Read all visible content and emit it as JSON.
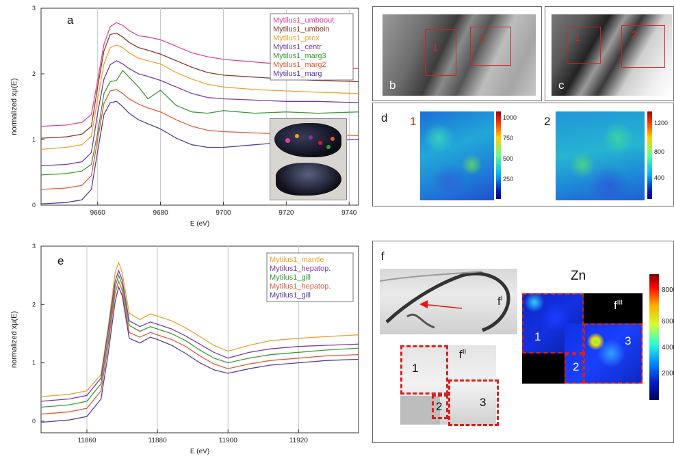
{
  "chart_data": [
    {
      "type": "line",
      "panel": "a",
      "xlabel": "E (eV)",
      "ylabel": "normalized xμ(E)",
      "xlim": [
        9642,
        9743
      ],
      "ylim": [
        0,
        3
      ],
      "xticks": [
        9660,
        9680,
        9700,
        9720,
        9740
      ],
      "yticks": [
        0,
        1,
        2,
        3
      ],
      "grid": "vertical",
      "legend_position": "top-right",
      "x": [
        9642,
        9650,
        9655,
        9658,
        9660,
        9662,
        9664,
        9666,
        9668,
        9670,
        9673,
        9676,
        9680,
        9685,
        9690,
        9695,
        9700,
        9710,
        9720,
        9730,
        9743
      ],
      "series": [
        {
          "name": "Mytilus1_umboout",
          "color": "#e0449c",
          "values": [
            1.2,
            1.22,
            1.26,
            1.38,
            1.9,
            2.45,
            2.72,
            2.78,
            2.74,
            2.66,
            2.58,
            2.56,
            2.52,
            2.42,
            2.32,
            2.26,
            2.22,
            2.18,
            2.14,
            2.1,
            2.08
          ]
        },
        {
          "name": "Mytilus1_umboin",
          "color": "#8b3a2a",
          "values": [
            1.02,
            1.04,
            1.08,
            1.2,
            1.8,
            2.35,
            2.6,
            2.62,
            2.56,
            2.48,
            2.4,
            2.36,
            2.3,
            2.2,
            2.1,
            2.02,
            1.98,
            1.95,
            1.92,
            1.9,
            1.88
          ]
        },
        {
          "name": "Mytilus1_prox",
          "color": "#f0a030",
          "values": [
            0.85,
            0.88,
            0.92,
            1.05,
            1.62,
            2.15,
            2.4,
            2.44,
            2.4,
            2.32,
            2.24,
            2.2,
            2.15,
            2.02,
            1.92,
            1.84,
            1.8,
            1.76,
            1.74,
            1.72,
            1.7
          ]
        },
        {
          "name": "Mytilus1_centr",
          "color": "#7a3aa0",
          "values": [
            0.6,
            0.62,
            0.66,
            0.8,
            1.4,
            1.92,
            2.14,
            2.2,
            2.15,
            2.08,
            2.0,
            1.96,
            1.9,
            1.8,
            1.7,
            1.64,
            1.62,
            1.6,
            1.58,
            1.58,
            1.56
          ]
        },
        {
          "name": "Mytilus1_marg3",
          "color": "#3a9a3a",
          "values": [
            0.46,
            0.48,
            0.52,
            0.62,
            1.1,
            1.7,
            1.88,
            1.9,
            2.05,
            1.95,
            1.8,
            1.62,
            1.75,
            1.52,
            1.42,
            1.4,
            1.44,
            1.4,
            1.42,
            1.4,
            1.42
          ]
        },
        {
          "name": "Mytilus1_marg2",
          "color": "#e05a3a",
          "values": [
            0.24,
            0.26,
            0.3,
            0.45,
            1.0,
            1.55,
            1.74,
            1.76,
            1.7,
            1.62,
            1.54,
            1.48,
            1.42,
            1.3,
            1.2,
            1.14,
            1.12,
            1.1,
            1.08,
            1.08,
            1.06
          ]
        },
        {
          "name": "Mytilus1_marg",
          "color": "#5a3a9a",
          "values": [
            0.02,
            0.04,
            0.08,
            0.24,
            0.82,
            1.38,
            1.56,
            1.58,
            1.5,
            1.4,
            1.3,
            1.24,
            1.16,
            1.02,
            0.92,
            0.88,
            0.88,
            0.92,
            0.96,
            0.98,
            1.0
          ]
        }
      ]
    },
    {
      "type": "line",
      "panel": "e",
      "xlabel": "E (eV)",
      "ylabel": "normalized xμ(E)",
      "xlim": [
        11847,
        11937
      ],
      "ylim": [
        -0.2,
        3
      ],
      "xticks": [
        11860,
        11880,
        11900,
        11920
      ],
      "yticks": [
        0,
        1,
        2,
        3
      ],
      "grid": "vertical",
      "legend_position": "top-right",
      "x": [
        11847,
        11855,
        11860,
        11864,
        11866,
        11868,
        11869,
        11870,
        11872,
        11875,
        11878,
        11880,
        11884,
        11888,
        11892,
        11896,
        11900,
        11906,
        11912,
        11920,
        11928,
        11937
      ],
      "series": [
        {
          "name": "Mytilus1_mantle",
          "color": "#f0a030",
          "values": [
            0.42,
            0.46,
            0.52,
            0.8,
            1.6,
            2.55,
            2.72,
            2.55,
            1.85,
            1.74,
            1.84,
            1.8,
            1.72,
            1.6,
            1.45,
            1.3,
            1.2,
            1.3,
            1.38,
            1.42,
            1.45,
            1.48
          ]
        },
        {
          "name": "Mytilus1_hepatop.",
          "color": "#7a3aa0",
          "values": [
            0.34,
            0.38,
            0.44,
            0.74,
            1.55,
            2.4,
            2.58,
            2.42,
            1.72,
            1.62,
            1.7,
            1.66,
            1.58,
            1.46,
            1.32,
            1.18,
            1.08,
            1.18,
            1.24,
            1.28,
            1.3,
            1.32
          ]
        },
        {
          "name": "Mytilus1_gill",
          "color": "#3a9a3a",
          "values": [
            0.24,
            0.28,
            0.34,
            0.64,
            1.42,
            2.3,
            2.5,
            2.34,
            1.64,
            1.54,
            1.62,
            1.58,
            1.5,
            1.38,
            1.22,
            1.08,
            1.0,
            1.08,
            1.14,
            1.18,
            1.22,
            1.25
          ]
        },
        {
          "name": "Mytilus1_hepatop.",
          "color": "#e05a3a",
          "values": [
            0.12,
            0.16,
            0.22,
            0.52,
            1.3,
            2.2,
            2.4,
            2.24,
            1.52,
            1.44,
            1.52,
            1.48,
            1.4,
            1.28,
            1.12,
            0.98,
            0.9,
            0.98,
            1.04,
            1.08,
            1.12,
            1.14
          ]
        },
        {
          "name": "Mytilus1_gill",
          "color": "#5a3a9a",
          "values": [
            -0.02,
            0.02,
            0.08,
            0.38,
            1.15,
            2.05,
            2.3,
            2.15,
            1.42,
            1.34,
            1.44,
            1.4,
            1.3,
            1.16,
            1.0,
            0.88,
            0.82,
            0.9,
            0.96,
            1.0,
            1.04,
            1.06
          ]
        }
      ]
    }
  ],
  "panels": {
    "a_label": "a",
    "e_label": "e",
    "b_label": "b",
    "c_label": "c",
    "d_label": "d",
    "f_label": "f",
    "b_regions": [
      "1",
      "2"
    ],
    "c_regions": [
      "1",
      "2"
    ],
    "d_maps": [
      {
        "num": "1",
        "ticks": [
          "1000",
          "750",
          "500",
          "250"
        ]
      },
      {
        "num": "2",
        "ticks": [
          "1200",
          "800",
          "400"
        ]
      }
    ],
    "f_sub_I": "f",
    "f_sup_I": "I",
    "f_sub_II": "f",
    "f_sup_II": "II",
    "f_sub_III": "f",
    "f_sup_III": "III",
    "f_regions": [
      "1",
      "2",
      "3"
    ],
    "zn_label": "Zn",
    "zn_ticks": [
      "8000",
      "6000",
      "4000",
      "2000"
    ]
  },
  "colors": {
    "frame": "#6a6a6a",
    "dashed_box": "#d62020",
    "grid": "#c8c8c8"
  }
}
